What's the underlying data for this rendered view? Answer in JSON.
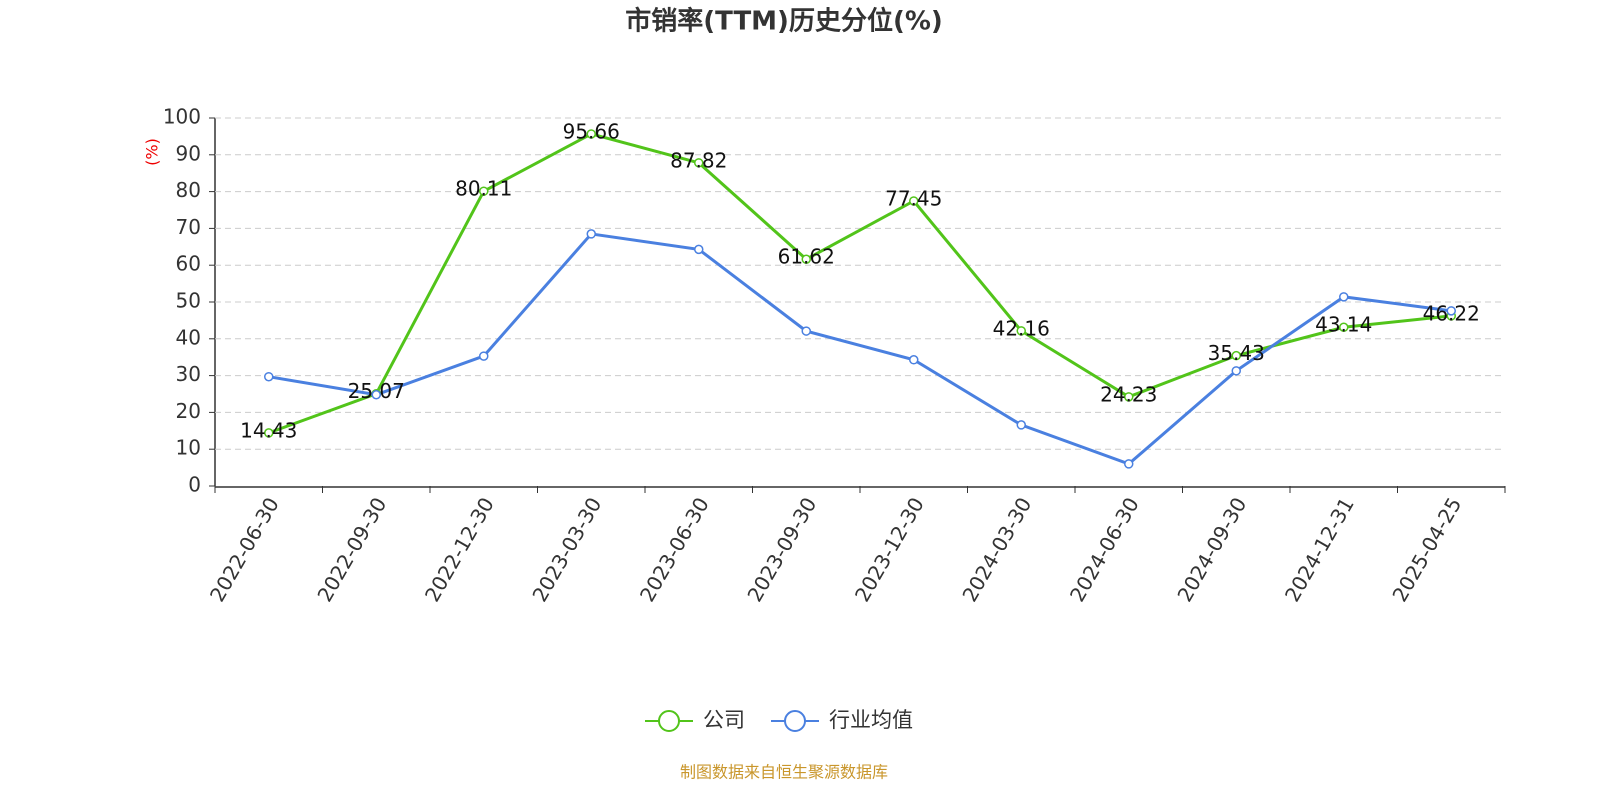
{
  "chart_data": {
    "type": "line",
    "title": "市销率(TTM)历史分位(%)",
    "y_label": "(%)",
    "source": "制图数据来自恒生聚源数据库",
    "categories": [
      "2022-06-30",
      "2022-09-30",
      "2022-12-30",
      "2023-03-30",
      "2023-06-30",
      "2023-09-30",
      "2023-12-30",
      "2024-03-30",
      "2024-06-30",
      "2024-09-30",
      "2024-12-31",
      "2025-04-25"
    ],
    "series": [
      {
        "name": "公司",
        "color": "#52c41a",
        "show_labels": true,
        "values": [
          14.43,
          25.07,
          80.11,
          95.66,
          87.82,
          61.62,
          77.45,
          42.16,
          24.23,
          35.43,
          43.14,
          46.22
        ]
      },
      {
        "name": "行业均值",
        "color": "#4a80e0",
        "show_labels": false,
        "values": [
          29.7,
          24.8,
          35.3,
          68.5,
          64.3,
          42.1,
          34.3,
          16.6,
          6.0,
          31.3,
          51.4,
          47.6
        ]
      }
    ],
    "ylim": [
      0,
      100
    ],
    "yticks": [
      0,
      10,
      20,
      30,
      40,
      50,
      60,
      70,
      80,
      90,
      100
    ],
    "grid": true
  }
}
